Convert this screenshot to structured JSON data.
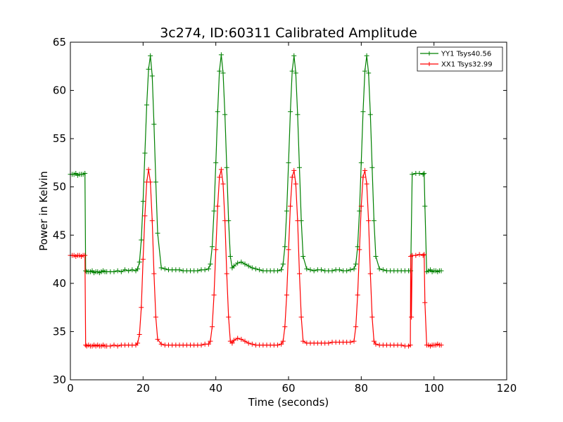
{
  "chart_data": {
    "type": "line",
    "title": "3c274, ID:60311 Calibrated Amplitude",
    "xlabel": "Time (seconds)",
    "ylabel": "Power in Kelvin",
    "xlim": [
      0,
      120
    ],
    "ylim": [
      30,
      65
    ],
    "xticks": [
      0,
      20,
      40,
      60,
      80,
      100,
      120
    ],
    "yticks": [
      30,
      35,
      40,
      45,
      50,
      55,
      60,
      65
    ],
    "grid": false,
    "legend_position": "top-right",
    "series": [
      {
        "name": "YY1 Tsys40.56",
        "color": "#008000",
        "x": [
          0,
          0.5,
          1,
          1.5,
          2,
          2.5,
          3,
          3.5,
          4,
          4.2,
          4.5,
          5,
          5.5,
          6,
          6.5,
          7,
          7.5,
          8,
          8.5,
          9,
          9.5,
          10,
          11,
          12,
          13,
          14,
          15,
          16,
          17,
          18,
          18.5,
          19,
          19.5,
          20,
          20.5,
          21,
          21.5,
          22,
          22.5,
          23,
          23.5,
          24,
          25,
          26,
          27,
          28,
          29,
          30,
          31,
          32,
          33,
          34,
          35,
          36,
          37,
          38,
          38.5,
          39,
          39.5,
          40,
          40.5,
          41,
          41.5,
          42,
          42.5,
          43,
          43.5,
          44,
          44.5,
          45,
          46,
          47,
          48,
          49,
          50,
          51,
          52,
          53,
          54,
          55,
          56,
          57,
          58,
          58.5,
          59,
          59.5,
          60,
          60.5,
          61,
          61.5,
          62,
          62.5,
          63,
          63.5,
          64,
          65,
          66,
          67,
          68,
          69,
          70,
          71,
          72,
          73,
          74,
          75,
          76,
          77,
          78,
          78.5,
          79,
          79.5,
          80,
          80.5,
          81,
          81.5,
          82,
          82.5,
          83,
          83.5,
          84,
          85,
          86,
          87,
          88,
          89,
          90,
          91,
          92,
          93,
          93.5,
          93.6,
          94,
          95,
          96,
          97,
          97.3,
          97.5,
          98,
          98.5,
          99,
          99.5,
          100,
          100.5,
          101,
          101.5,
          102
        ],
        "values": [
          51.3,
          51.3,
          51.3,
          51.4,
          51.2,
          51.3,
          51.3,
          51.3,
          51.4,
          41.3,
          41.2,
          41.2,
          41.2,
          41.3,
          41.1,
          41.2,
          41.2,
          41.1,
          41.2,
          41.3,
          41.2,
          41.2,
          41.2,
          41.2,
          41.3,
          41.2,
          41.4,
          41.3,
          41.4,
          41.3,
          41.5,
          42.2,
          44.5,
          48.5,
          53.5,
          58.5,
          62.2,
          63.6,
          61.5,
          56.5,
          50.5,
          45.2,
          41.6,
          41.5,
          41.4,
          41.4,
          41.4,
          41.4,
          41.3,
          41.3,
          41.3,
          41.3,
          41.3,
          41.4,
          41.4,
          41.5,
          42.0,
          43.8,
          47.5,
          52.5,
          57.8,
          62.0,
          63.7,
          61.8,
          57.5,
          52.0,
          46.5,
          42.8,
          41.6,
          41.8,
          42.1,
          42.2,
          42.0,
          41.8,
          41.6,
          41.5,
          41.4,
          41.3,
          41.3,
          41.3,
          41.3,
          41.3,
          41.4,
          42.0,
          43.8,
          47.5,
          52.5,
          57.8,
          62.0,
          63.6,
          61.8,
          57.5,
          52.0,
          46.5,
          42.8,
          41.5,
          41.4,
          41.3,
          41.4,
          41.4,
          41.3,
          41.3,
          41.3,
          41.4,
          41.4,
          41.3,
          41.3,
          41.4,
          41.5,
          42.0,
          43.8,
          47.5,
          52.5,
          57.8,
          62.0,
          63.6,
          61.8,
          57.5,
          52.0,
          46.5,
          42.8,
          41.5,
          41.4,
          41.3,
          41.3,
          41.3,
          41.3,
          41.3,
          41.3,
          41.3,
          41.3,
          41.3,
          51.3,
          51.4,
          51.4,
          51.3,
          51.4,
          48.0,
          41.2,
          41.3,
          41.4,
          41.2,
          41.3,
          41.3,
          41.2,
          41.3,
          41.3
        ]
      },
      {
        "name": "XX1 Tsys32.99",
        "color": "#ff0000",
        "x": [
          0,
          0.5,
          1,
          1.5,
          2,
          2.5,
          3,
          3.5,
          4,
          4.2,
          4.5,
          5,
          5.5,
          6,
          6.5,
          7,
          7.5,
          8,
          8.5,
          9,
          9.5,
          10,
          11,
          12,
          13,
          14,
          15,
          16,
          17,
          18,
          18.5,
          19,
          19.5,
          20,
          20.5,
          21,
          21.5,
          22,
          22.5,
          23,
          23.5,
          24,
          25,
          26,
          27,
          28,
          29,
          30,
          31,
          32,
          33,
          34,
          35,
          36,
          37,
          38,
          38.5,
          39,
          39.5,
          40,
          40.5,
          41,
          41.5,
          42,
          42.5,
          43,
          43.5,
          44,
          44.5,
          45,
          46,
          47,
          48,
          49,
          50,
          51,
          52,
          53,
          54,
          55,
          56,
          57,
          58,
          58.5,
          59,
          59.5,
          60,
          60.5,
          61,
          61.5,
          62,
          62.5,
          63,
          63.5,
          64,
          65,
          66,
          67,
          68,
          69,
          70,
          71,
          72,
          73,
          74,
          75,
          76,
          77,
          78,
          78.5,
          79,
          79.5,
          80,
          80.5,
          81,
          81.5,
          82,
          82.5,
          83,
          83.5,
          84,
          85,
          86,
          87,
          88,
          89,
          90,
          91,
          92,
          93,
          93.5,
          93.6,
          93.8,
          94,
          95,
          96,
          97,
          97.3,
          97.5,
          98,
          98.5,
          99,
          99.5,
          100,
          100.5,
          101,
          101.5,
          102
        ],
        "values": [
          42.9,
          42.9,
          42.9,
          42.8,
          42.9,
          42.9,
          42.8,
          42.9,
          42.9,
          33.6,
          33.5,
          33.6,
          33.5,
          33.5,
          33.6,
          33.5,
          33.6,
          33.5,
          33.5,
          33.6,
          33.5,
          33.5,
          33.5,
          33.6,
          33.5,
          33.6,
          33.6,
          33.6,
          33.6,
          33.6,
          33.8,
          34.7,
          37.5,
          42.5,
          47.0,
          50.5,
          51.8,
          50.5,
          46.5,
          41.0,
          36.5,
          34.2,
          33.7,
          33.6,
          33.6,
          33.6,
          33.6,
          33.6,
          33.6,
          33.6,
          33.6,
          33.6,
          33.6,
          33.6,
          33.7,
          33.7,
          34.0,
          35.5,
          38.8,
          43.5,
          48.0,
          51.0,
          51.8,
          50.3,
          46.5,
          41.0,
          36.5,
          34.0,
          33.8,
          34.1,
          34.3,
          34.2,
          34.0,
          33.8,
          33.7,
          33.6,
          33.6,
          33.6,
          33.6,
          33.6,
          33.6,
          33.6,
          33.7,
          34.0,
          35.5,
          38.8,
          43.5,
          48.0,
          51.0,
          51.7,
          50.3,
          46.5,
          41.0,
          36.5,
          34.0,
          33.8,
          33.8,
          33.8,
          33.8,
          33.8,
          33.8,
          33.8,
          33.9,
          33.9,
          33.9,
          33.9,
          33.9,
          33.9,
          34.0,
          35.5,
          38.8,
          43.5,
          48.0,
          51.0,
          51.7,
          50.3,
          46.5,
          41.0,
          36.5,
          34.0,
          33.7,
          33.6,
          33.6,
          33.6,
          33.6,
          33.6,
          33.6,
          33.6,
          33.5,
          33.5,
          33.6,
          42.8,
          36.5,
          42.9,
          42.9,
          43.0,
          42.9,
          43.0,
          38.0,
          33.6,
          33.6,
          33.5,
          33.6,
          33.6,
          33.6,
          33.7,
          33.6,
          33.6
        ]
      }
    ]
  }
}
